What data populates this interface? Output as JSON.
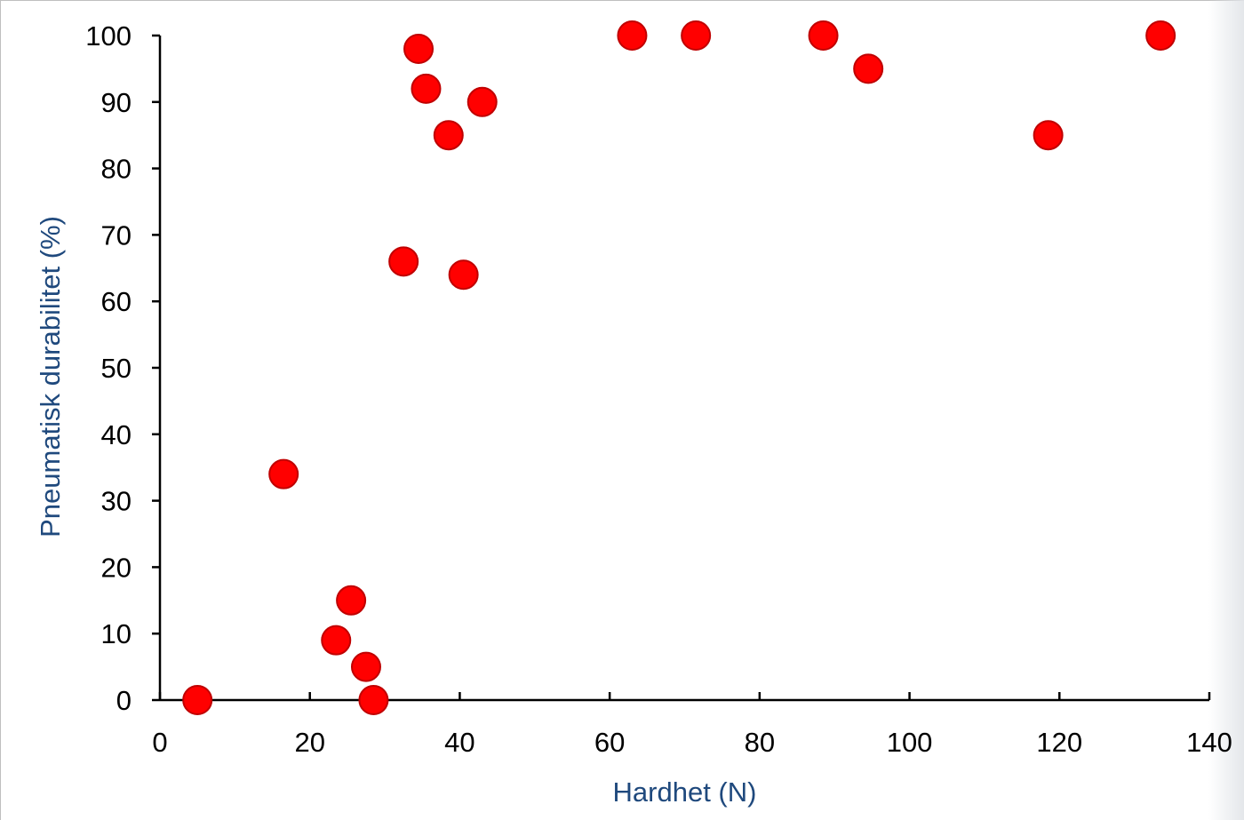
{
  "chart_data": {
    "type": "scatter",
    "title": "",
    "xlabel": "Hardhet (N)",
    "ylabel": "Pneumatisk durabilitet (%)",
    "xlim": [
      0,
      140
    ],
    "ylim": [
      0,
      100
    ],
    "xticks": [
      0,
      20,
      40,
      60,
      80,
      100,
      120,
      140
    ],
    "yticks": [
      0,
      10,
      20,
      30,
      40,
      50,
      60,
      70,
      80,
      90,
      100
    ],
    "grid": false,
    "legend": "none",
    "marker_color": "#ff0000",
    "marker_edge_color": "#c00000",
    "axis_title_color": "#1f497d",
    "x": [
      5,
      16.5,
      23.5,
      25.5,
      27.5,
      28.5,
      32.5,
      34.5,
      35.5,
      38.5,
      40.5,
      43,
      63,
      71.5,
      88.5,
      94.5,
      118.5,
      133.5
    ],
    "y": [
      0,
      34,
      9,
      15,
      5,
      0,
      66,
      98,
      92,
      85,
      64,
      90,
      100,
      100,
      100,
      95,
      85,
      100
    ]
  }
}
